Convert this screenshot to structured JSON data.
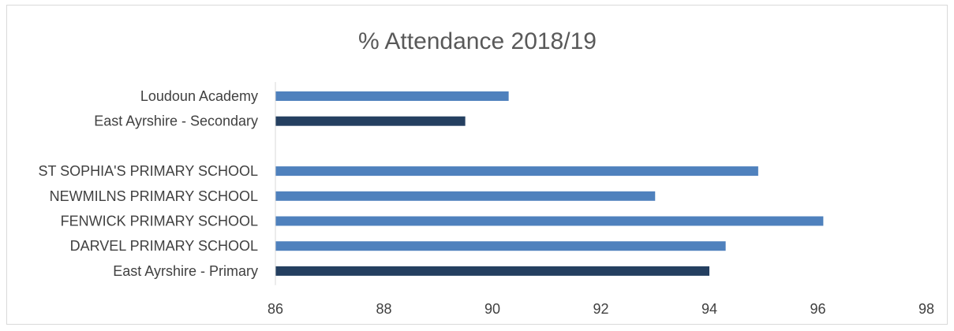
{
  "chart_data": {
    "type": "bar",
    "orientation": "horizontal",
    "title": "% Attendance 2018/19",
    "xlabel": "",
    "ylabel": "",
    "xlim": [
      86,
      98
    ],
    "x_ticks": [
      "86",
      "88",
      "90",
      "92",
      "94",
      "96",
      "98"
    ],
    "grid": false,
    "legend": "none",
    "categories": [
      "Loudoun Academy",
      "East Ayrshire - Secondary",
      "",
      "ST SOPHIA'S PRIMARY SCHOOL",
      "NEWMILNS PRIMARY SCHOOL",
      "FENWICK PRIMARY SCHOOL",
      "DARVEL PRIMARY SCHOOL",
      "East Ayrshire - Primary"
    ],
    "values": [
      90.3,
      89.5,
      null,
      94.9,
      93.0,
      96.1,
      94.3,
      94.0
    ],
    "bar_colors": [
      "#4f81bd",
      "#243f60",
      null,
      "#4f81bd",
      "#4f81bd",
      "#4f81bd",
      "#4f81bd",
      "#243f60"
    ],
    "colors": {
      "school_bar": "#4f81bd",
      "authority_bar": "#243f60",
      "axis_line": "#d9d9d9",
      "text": "#404040",
      "title": "#595959"
    }
  }
}
